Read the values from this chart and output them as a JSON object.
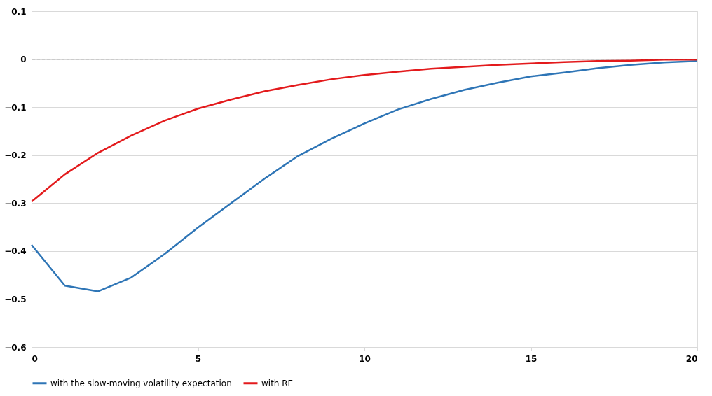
{
  "chart_data": {
    "type": "line",
    "x": [
      0,
      1,
      2,
      3,
      4,
      5,
      6,
      7,
      8,
      9,
      10,
      11,
      12,
      13,
      14,
      15,
      16,
      17,
      18,
      19,
      20
    ],
    "series": [
      {
        "name": "with the slow-moving volatility expectation",
        "color": "#2e75b6",
        "values": [
          -0.387,
          -0.472,
          -0.484,
          -0.455,
          -0.406,
          -0.351,
          -0.3,
          -0.249,
          -0.202,
          -0.166,
          -0.134,
          -0.105,
          -0.083,
          -0.064,
          -0.049,
          -0.036,
          -0.028,
          -0.019,
          -0.012,
          -0.007,
          -0.004
        ]
      },
      {
        "name": "with RE",
        "color": "#e31a1c",
        "values": [
          -0.297,
          -0.24,
          -0.195,
          -0.159,
          -0.128,
          -0.103,
          -0.084,
          -0.067,
          -0.054,
          -0.042,
          -0.033,
          -0.026,
          -0.02,
          -0.016,
          -0.012,
          -0.009,
          -0.006,
          -0.004,
          -0.003,
          -0.001,
          -0.001
        ]
      }
    ],
    "xlim": [
      0,
      20
    ],
    "xticks": [
      0,
      5,
      10,
      15,
      20
    ],
    "ylim": [
      -0.6,
      0.1
    ],
    "yticks": [
      -0.6,
      -0.5,
      -0.4,
      -0.3,
      -0.2,
      -0.1,
      0,
      0.1
    ],
    "ref_lines": [
      {
        "axis": "y",
        "value": 0,
        "color": "#000000",
        "line_style": "dashed"
      }
    ],
    "grid": "y",
    "legend": "bottom",
    "marker": "none",
    "line_style": "solid"
  }
}
